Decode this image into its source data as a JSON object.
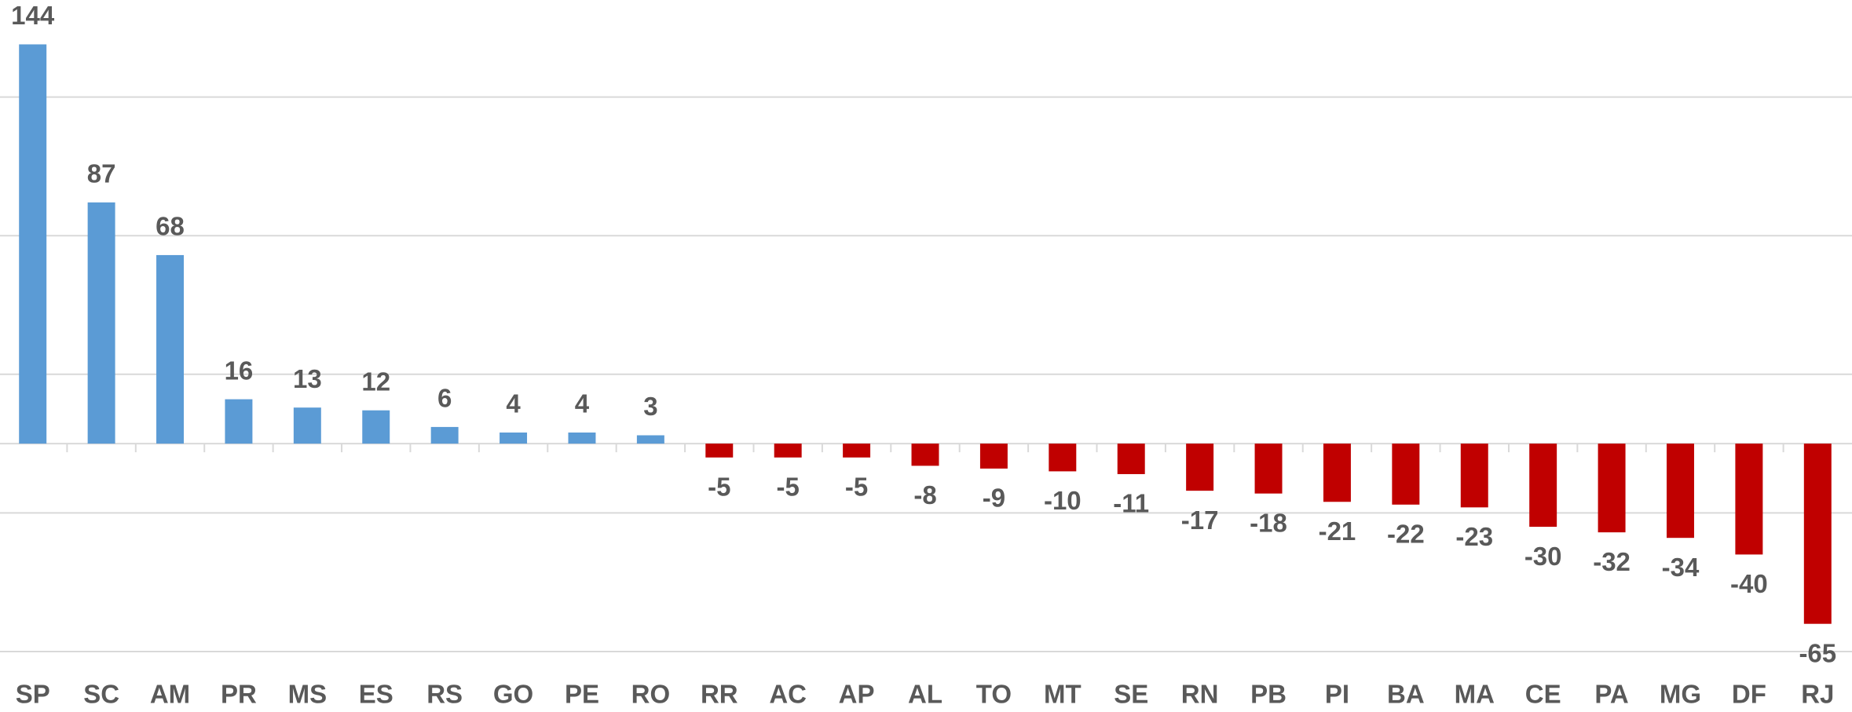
{
  "chart_data": {
    "type": "bar",
    "categories": [
      "SP",
      "SC",
      "AM",
      "PR",
      "MS",
      "ES",
      "RS",
      "GO",
      "PE",
      "RO",
      "RR",
      "AC",
      "AP",
      "AL",
      "TO",
      "MT",
      "SE",
      "RN",
      "PB",
      "PI",
      "BA",
      "MA",
      "CE",
      "PA",
      "MG",
      "DF",
      "RJ"
    ],
    "values": [
      144,
      87,
      68,
      16,
      13,
      12,
      6,
      4,
      4,
      3,
      -5,
      -5,
      -5,
      -8,
      -9,
      -10,
      -11,
      -17,
      -18,
      -21,
      -22,
      -23,
      -30,
      -32,
      -34,
      -40,
      -65
    ],
    "color": "#5b9bd5",
    "negative_color": "#c00000",
    "ylim": [
      -75,
      160
    ],
    "yticks": [
      -75,
      -25,
      25,
      75,
      125
    ],
    "grid": true
  }
}
